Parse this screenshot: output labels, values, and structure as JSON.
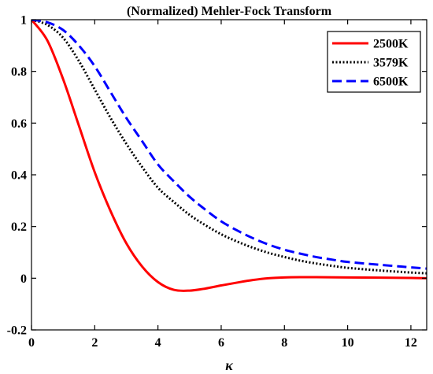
{
  "chart_data": {
    "type": "line",
    "title": "(Normalized) Mehler-Fock Transform",
    "xlabel": "κ",
    "ylabel": "",
    "xlim": [
      0,
      12.5
    ],
    "ylim": [
      -0.2,
      1
    ],
    "x_ticks": [
      0,
      2,
      4,
      6,
      8,
      10,
      12
    ],
    "x_tick_labels": [
      "0",
      "2",
      "4",
      "6",
      "8",
      "10",
      "12"
    ],
    "y_ticks": [
      -0.2,
      0,
      0.2,
      0.4,
      0.6,
      0.8,
      1
    ],
    "y_tick_labels": [
      "-0.2",
      "0",
      "0.2",
      "0.4",
      "0.6",
      "0.8",
      "1"
    ],
    "grid": false,
    "legend_position": "top-right",
    "series": [
      {
        "name": "2500K",
        "color": "#ff0000",
        "line_style": "solid",
        "x": [
          0,
          0.5,
          1,
          1.5,
          2,
          2.5,
          3,
          3.5,
          4,
          4.5,
          5,
          5.5,
          6,
          6.5,
          7,
          7.5,
          8,
          8.5,
          9,
          10,
          11,
          12,
          12.5
        ],
        "y": [
          1.0,
          0.92,
          0.77,
          0.59,
          0.41,
          0.26,
          0.135,
          0.045,
          -0.015,
          -0.045,
          -0.048,
          -0.04,
          -0.028,
          -0.017,
          -0.007,
          0.0,
          0.003,
          0.004,
          0.004,
          0.003,
          0.002,
          0.001,
          0.0
        ]
      },
      {
        "name": "3579K",
        "color": "#000000",
        "line_style": "dotted",
        "x": [
          0,
          0.5,
          1,
          1.5,
          2,
          2.5,
          3,
          3.5,
          4,
          4.5,
          5,
          5.5,
          6,
          6.5,
          7,
          7.5,
          8,
          8.5,
          9,
          9.5,
          10,
          11,
          12,
          12.5
        ],
        "y": [
          1.0,
          0.98,
          0.93,
          0.84,
          0.73,
          0.62,
          0.52,
          0.43,
          0.35,
          0.295,
          0.245,
          0.205,
          0.17,
          0.142,
          0.118,
          0.098,
          0.082,
          0.068,
          0.057,
          0.048,
          0.04,
          0.03,
          0.022,
          0.019
        ]
      },
      {
        "name": "6500K",
        "color": "#0000ff",
        "line_style": "dashed",
        "x": [
          0,
          0.5,
          1,
          1.5,
          2,
          2.5,
          3,
          3.5,
          4,
          4.5,
          5,
          5.5,
          6,
          6.5,
          7,
          7.5,
          8,
          8.5,
          9,
          9.5,
          10,
          11,
          12,
          12.5
        ],
        "y": [
          1.0,
          0.99,
          0.96,
          0.9,
          0.82,
          0.72,
          0.62,
          0.53,
          0.44,
          0.375,
          0.315,
          0.265,
          0.22,
          0.185,
          0.155,
          0.13,
          0.11,
          0.095,
          0.082,
          0.072,
          0.063,
          0.052,
          0.042,
          0.037
        ]
      }
    ]
  }
}
